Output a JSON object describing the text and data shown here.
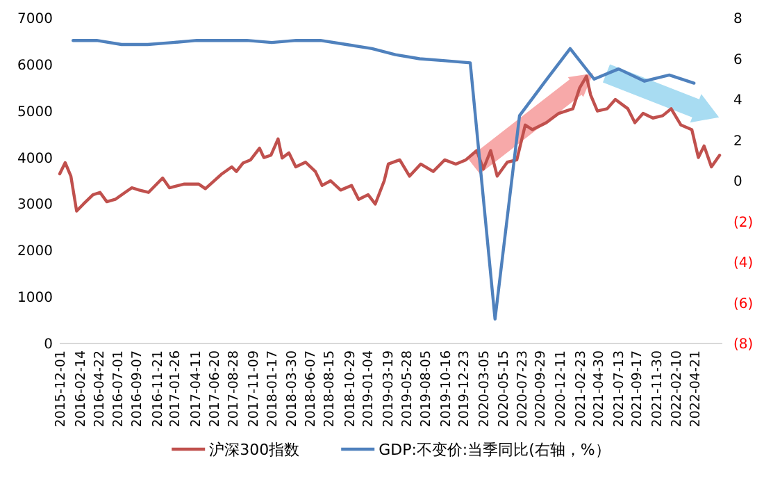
{
  "chart_data": {
    "type": "line",
    "xlim": [
      "2015-12-01",
      "2022-07-31"
    ],
    "xticks": [
      "2015-12-01",
      "2016-02-14",
      "2016-04-22",
      "2016-07-01",
      "2016-09-07",
      "2016-11-21",
      "2017-01-26",
      "2017-04-11",
      "2017-06-20",
      "2017-08-28",
      "2017-11-09",
      "2018-01-17",
      "2018-03-30",
      "2018-06-07",
      "2018-08-15",
      "2018-10-29",
      "2019-01-04",
      "2019-03-19",
      "2019-05-28",
      "2019-08-05",
      "2019-10-16",
      "2019-12-23",
      "2020-03-05",
      "2020-05-15",
      "2020-07-23",
      "2020-09-29",
      "2020-12-11",
      "2021-02-23",
      "2021-04-30",
      "2021-07-13",
      "2021-09-17",
      "2021-11-30",
      "2022-02-10",
      "2022-04-21"
    ],
    "ylim": [
      0,
      7000
    ],
    "yticks": [
      0,
      1000,
      2000,
      3000,
      4000,
      5000,
      6000,
      7000
    ],
    "y2lim": [
      -8,
      8
    ],
    "y2ticks": [
      {
        "value": -8,
        "label": "(8)"
      },
      {
        "value": -6,
        "label": "(6)"
      },
      {
        "value": -4,
        "label": "(4)"
      },
      {
        "value": -2,
        "label": "(2)"
      },
      0,
      2,
      4,
      6,
      8
    ],
    "legend": "bottom",
    "marker": "none",
    "line_style": "solid",
    "series": [
      {
        "name": "沪深300指数",
        "color": "#c0504d",
        "x": [
          "2015-12-01",
          "2015-12-21",
          "2016-01-11",
          "2016-02-01",
          "2016-02-26",
          "2016-04-01",
          "2016-04-27",
          "2016-05-22",
          "2016-06-22",
          "2016-07-28",
          "2016-08-22",
          "2016-09-18",
          "2016-10-22",
          "2016-12-13",
          "2017-01-07",
          "2017-03-03",
          "2017-04-24",
          "2017-05-19",
          "2017-07-19",
          "2017-08-24",
          "2017-09-10",
          "2017-10-04",
          "2017-11-01",
          "2017-12-04",
          "2017-12-20",
          "2018-01-15",
          "2018-02-10",
          "2018-02-25",
          "2018-03-22",
          "2018-04-16",
          "2018-05-22",
          "2018-06-27",
          "2018-07-22",
          "2018-08-22",
          "2018-09-28",
          "2018-11-07",
          "2018-12-03",
          "2019-01-07",
          "2019-02-02",
          "2019-03-07",
          "2019-03-22",
          "2019-05-03",
          "2019-06-08",
          "2019-07-19",
          "2019-09-03",
          "2019-10-15",
          "2019-11-25",
          "2020-01-01",
          "2020-02-10",
          "2020-03-05",
          "2020-04-01",
          "2020-04-25",
          "2020-06-01",
          "2020-07-06",
          "2020-08-06",
          "2020-09-01",
          "2020-10-22",
          "2020-12-07",
          "2021-01-28",
          "2021-02-22",
          "2021-03-19",
          "2021-04-03",
          "2021-04-28",
          "2021-06-03",
          "2021-07-03",
          "2021-08-18",
          "2021-09-13",
          "2021-10-13",
          "2021-11-18",
          "2021-12-24",
          "2022-01-24",
          "2022-03-01",
          "2022-04-10",
          "2022-05-04",
          "2022-05-25",
          "2022-06-21",
          "2022-07-21"
        ],
        "values": [
          3650,
          3890,
          3600,
          2850,
          3000,
          3200,
          3250,
          3050,
          3100,
          3250,
          3350,
          3300,
          3250,
          3560,
          3350,
          3430,
          3430,
          3330,
          3650,
          3800,
          3700,
          3880,
          3950,
          4200,
          4000,
          4050,
          4400,
          3990,
          4100,
          3800,
          3900,
          3700,
          3400,
          3500,
          3300,
          3400,
          3100,
          3200,
          3000,
          3500,
          3860,
          3950,
          3600,
          3860,
          3700,
          3950,
          3860,
          3950,
          4150,
          3750,
          4150,
          3600,
          3900,
          3950,
          4700,
          4600,
          4750,
          4950,
          5050,
          5500,
          5750,
          5350,
          5000,
          5050,
          5250,
          5050,
          4750,
          4950,
          4850,
          4900,
          5050,
          4700,
          4600,
          4000,
          4250,
          3800,
          4050
        ]
      },
      {
        "name": "GDP:不变价:当季同比(右轴，%）",
        "color": "#4f81bd",
        "axis": "y2",
        "x": [
          "2016-01-19",
          "2016-04-15",
          "2016-07-15",
          "2016-10-19",
          "2017-01-20",
          "2017-04-17",
          "2017-07-17",
          "2017-10-19",
          "2018-01-18",
          "2018-04-17",
          "2018-07-16",
          "2018-10-19",
          "2019-01-21",
          "2019-04-17",
          "2019-07-15",
          "2019-10-18",
          "2020-01-17",
          "2020-04-17",
          "2020-07-16",
          "2020-10-19",
          "2021-01-18",
          "2021-04-16",
          "2021-07-15",
          "2021-10-18",
          "2022-01-17",
          "2022-04-18"
        ],
        "values": [
          6.9,
          6.9,
          6.7,
          6.7,
          6.8,
          6.9,
          6.9,
          6.9,
          6.8,
          6.9,
          6.9,
          6.7,
          6.5,
          6.2,
          6.0,
          5.9,
          5.8,
          -6.8,
          3.2,
          4.9,
          6.5,
          5.0,
          5.5,
          4.9,
          5.2,
          4.8
        ]
      }
    ]
  }
}
